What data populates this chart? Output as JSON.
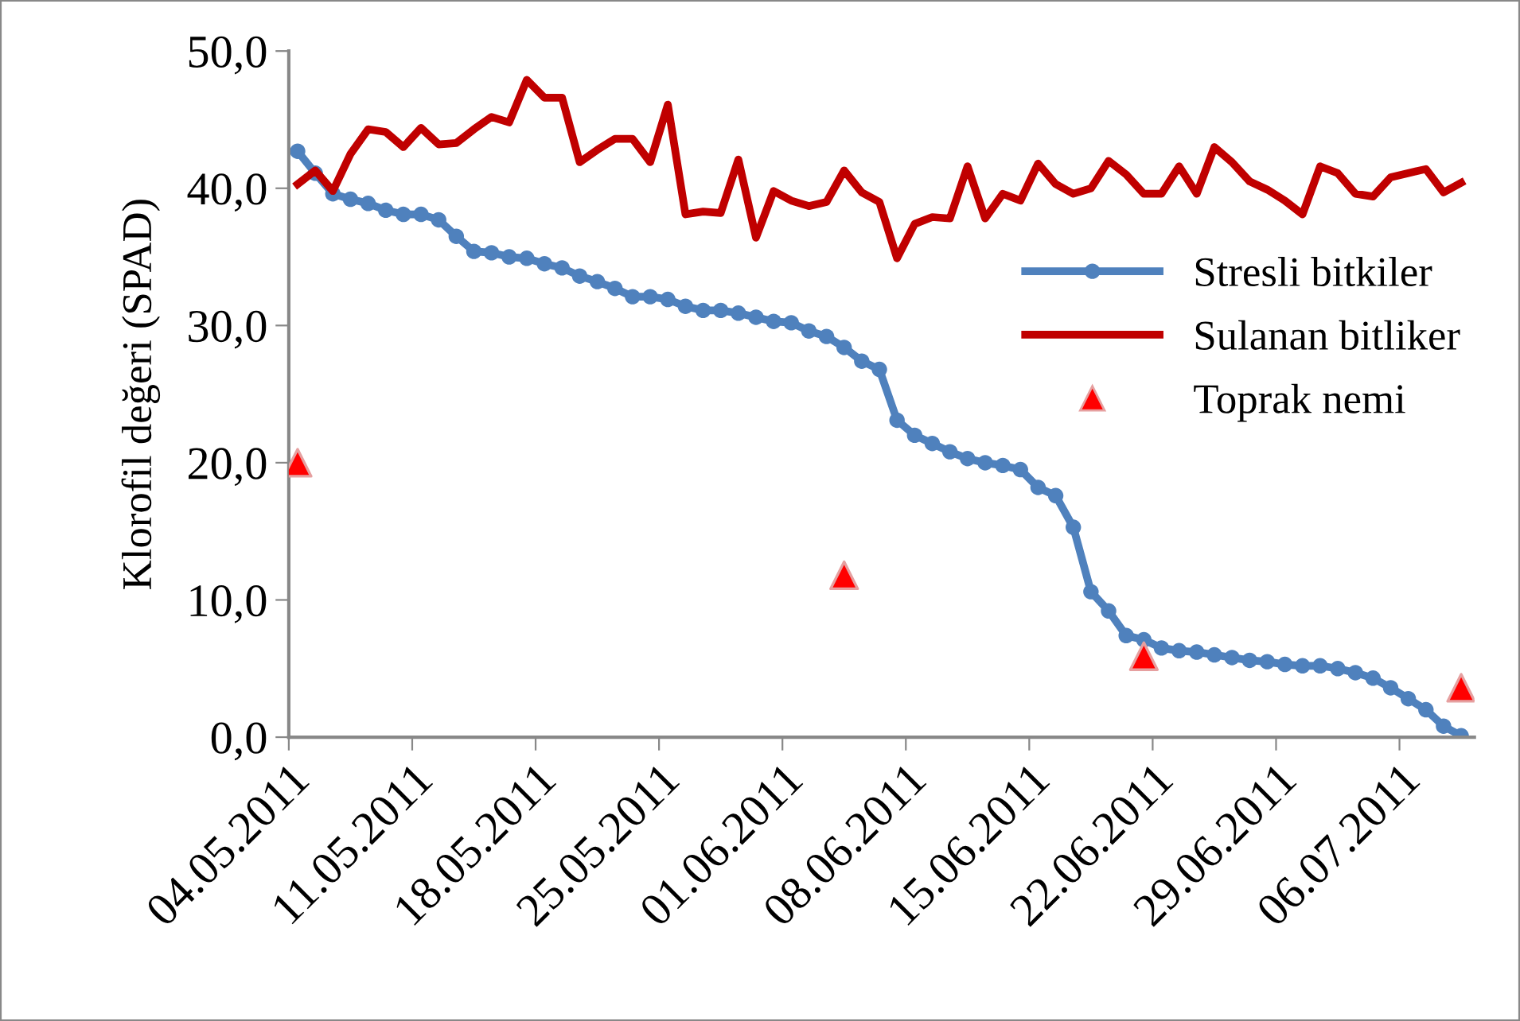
{
  "chart_data": {
    "type": "line",
    "ylabel": "Klorofil değeri (SPAD)",
    "x": [
      "2011-05-04T12:00",
      "2011-05-05T12:00",
      "2011-05-06T12:00",
      "2011-05-07T12:00",
      "2011-05-08T12:00",
      "2011-05-09T12:00",
      "2011-05-10T12:00",
      "2011-05-11T12:00",
      "2011-05-12T12:00",
      "2011-05-13T12:00",
      "2011-05-14T12:00",
      "2011-05-15T12:00",
      "2011-05-16T12:00",
      "2011-05-17T12:00",
      "2011-05-18T12:00",
      "2011-05-19T12:00",
      "2011-05-20T12:00",
      "2011-05-21T12:00",
      "2011-05-22T12:00",
      "2011-05-23T12:00",
      "2011-05-24T12:00",
      "2011-05-25T12:00",
      "2011-05-26T12:00",
      "2011-05-27T12:00",
      "2011-05-28T12:00",
      "2011-05-29T12:00",
      "2011-05-30T12:00",
      "2011-05-31T12:00",
      "2011-06-01T12:00",
      "2011-06-02T12:00",
      "2011-06-03T12:00",
      "2011-06-04T12:00",
      "2011-06-05T12:00",
      "2011-06-06T12:00",
      "2011-06-07T12:00",
      "2011-06-08T12:00",
      "2011-06-09T12:00",
      "2011-06-10T12:00",
      "2011-06-11T12:00",
      "2011-06-12T12:00",
      "2011-06-13T12:00",
      "2011-06-14T12:00",
      "2011-06-15T12:00",
      "2011-06-16T12:00",
      "2011-06-17T12:00",
      "2011-06-18T12:00",
      "2011-06-19T12:00",
      "2011-06-20T12:00",
      "2011-06-21T12:00",
      "2011-06-22T12:00",
      "2011-06-23T12:00",
      "2011-06-24T12:00",
      "2011-06-25T12:00",
      "2011-06-26T12:00",
      "2011-06-27T12:00",
      "2011-06-28T12:00",
      "2011-06-29T12:00",
      "2011-06-30T12:00",
      "2011-07-01T12:00",
      "2011-07-02T12:00",
      "2011-07-03T12:00",
      "2011-07-04T12:00",
      "2011-07-05T12:00",
      "2011-07-06T12:00",
      "2011-07-07T12:00",
      "2011-07-08T12:00",
      "2011-07-09T12:00"
    ],
    "series": [
      {
        "name": "Stresli bitkiler",
        "color": "#4f81bd",
        "marker": "circle",
        "values": [
          42.7,
          41.1,
          39.6,
          39.2,
          38.9,
          38.4,
          38.1,
          38.1,
          37.7,
          36.5,
          35.4,
          35.3,
          35.0,
          34.9,
          34.5,
          34.2,
          33.6,
          33.2,
          32.7,
          32.1,
          32.1,
          31.9,
          31.4,
          31.1,
          31.1,
          30.9,
          30.6,
          30.3,
          30.2,
          29.6,
          29.2,
          28.4,
          27.4,
          26.8,
          23.1,
          22.0,
          21.4,
          20.8,
          20.3,
          20.0,
          19.8,
          19.5,
          18.2,
          17.6,
          15.3,
          10.6,
          9.2,
          7.4,
          7.1,
          6.5,
          6.3,
          6.2,
          6.0,
          5.8,
          5.6,
          5.5,
          5.3,
          5.2,
          5.2,
          5.0,
          4.7,
          4.3,
          3.6,
          2.8,
          2.0,
          0.8,
          0.1
        ]
      },
      {
        "name": "Sulanan bitliker",
        "color": "#c00000",
        "marker": "none",
        "values": [
          40.3,
          41.3,
          39.8,
          42.5,
          44.3,
          44.1,
          43.0,
          44.4,
          43.2,
          43.3,
          44.3,
          45.2,
          44.8,
          47.9,
          46.6,
          46.6,
          41.9,
          42.8,
          43.6,
          43.6,
          41.9,
          46.1,
          38.1,
          38.3,
          38.2,
          42.1,
          36.4,
          39.8,
          39.1,
          38.7,
          39.0,
          41.3,
          39.7,
          39.0,
          34.9,
          37.4,
          37.9,
          37.8,
          41.6,
          37.8,
          39.6,
          39.1,
          41.8,
          40.3,
          39.6,
          40.0,
          42.0,
          41.0,
          39.6,
          39.6,
          41.6,
          39.6,
          43.0,
          41.9,
          40.5,
          39.9,
          39.1,
          38.1,
          41.6,
          41.1,
          39.6,
          39.4,
          40.8,
          41.1,
          41.4,
          39.7,
          40.4
        ]
      },
      {
        "name": "Toprak nemi",
        "type": "scatter",
        "color": "#ff0000",
        "marker": "triangle",
        "x": [
          "2011-05-04T12:00",
          "2011-06-04T12:00",
          "2011-06-21T12:00",
          "2011-07-09T12:00"
        ],
        "values": [
          20.0,
          11.8,
          5.9,
          3.6
        ]
      }
    ],
    "xlim": [
      "2011-05-04",
      "2011-07-10T06:00"
    ],
    "xticks": [
      {
        "value": "2011-05-04",
        "label": "04.05.2011"
      },
      {
        "value": "2011-05-11",
        "label": "11.05.2011"
      },
      {
        "value": "2011-05-18",
        "label": "18.05.2011"
      },
      {
        "value": "2011-05-25",
        "label": "25.05.2011"
      },
      {
        "value": "2011-06-01",
        "label": "01.06.2011"
      },
      {
        "value": "2011-06-08",
        "label": "08.06.2011"
      },
      {
        "value": "2011-06-15",
        "label": "15.06.2011"
      },
      {
        "value": "2011-06-22",
        "label": "22.06.2011"
      },
      {
        "value": "2011-06-29",
        "label": "29.06.2011"
      },
      {
        "value": "2011-07-06",
        "label": "06.07.2011"
      }
    ],
    "ylim": [
      0,
      50
    ],
    "yticks": [
      {
        "value": 0,
        "label": "0,0"
      },
      {
        "value": 10,
        "label": "10,0"
      },
      {
        "value": 20,
        "label": "20,0"
      },
      {
        "value": 30,
        "label": "30,0"
      },
      {
        "value": 40,
        "label": "40,0"
      },
      {
        "value": 50,
        "label": "50,0"
      }
    ],
    "grid": false,
    "legend": "center right"
  }
}
